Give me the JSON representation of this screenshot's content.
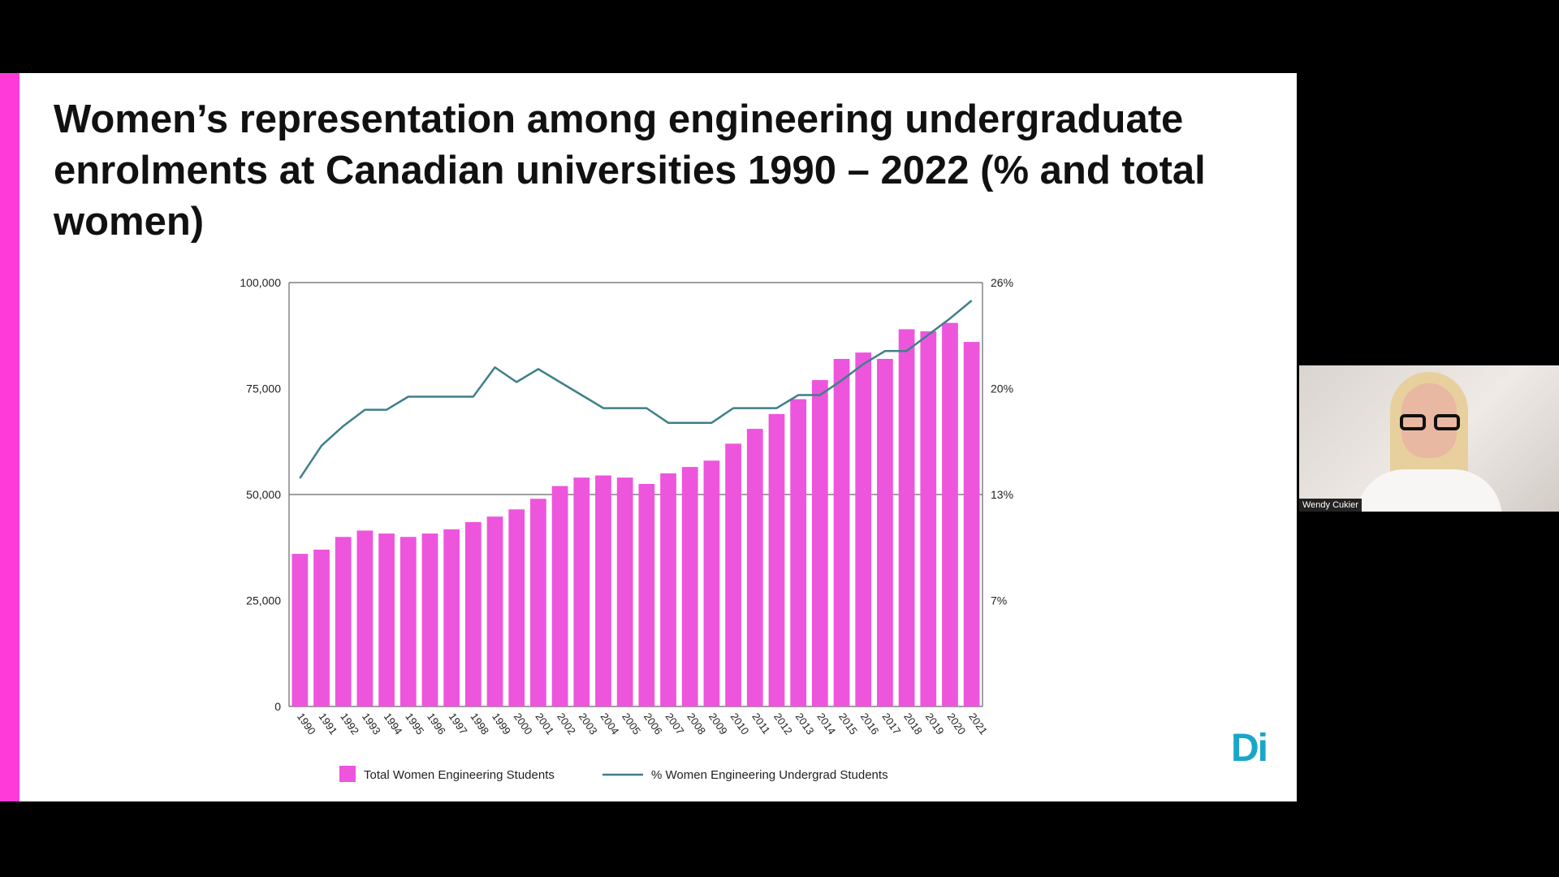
{
  "slide": {
    "title": "Women’s representation among engineering undergraduate enrolments at Canadian universities 1990 – 2022 (% and total women)",
    "logo_text": "Di",
    "accent_color": "#ff3ad8"
  },
  "video_tile": {
    "participant_name": "Wendy Cukier"
  },
  "chart_data": {
    "type": "bar",
    "title": "",
    "categories": [
      "1990",
      "1991",
      "1992",
      "1993",
      "1994",
      "1995",
      "1996",
      "1997",
      "1998",
      "1999",
      "2000",
      "2001",
      "2002",
      "2003",
      "2004",
      "2005",
      "2006",
      "2007",
      "2008",
      "2009",
      "2010",
      "2011",
      "2012",
      "2013",
      "2014",
      "2015",
      "2016",
      "2017",
      "2018",
      "2019",
      "2020",
      "2021"
    ],
    "series": [
      {
        "name": "Total Women Engineering Students",
        "type": "bar",
        "axis": "left",
        "color": "#ee55dd",
        "values": [
          36000,
          37000,
          40000,
          41500,
          40800,
          40000,
          40800,
          41800,
          43500,
          44800,
          46500,
          49000,
          52000,
          54000,
          54500,
          54000,
          52500,
          55000,
          56500,
          58000,
          62000,
          65500,
          69000,
          72500,
          77000,
          82000,
          83500,
          82000,
          89000,
          88500,
          90500,
          86000
        ]
      },
      {
        "name": "% Women Engineering Undergrad Students",
        "type": "line",
        "axis": "right",
        "color": "#3e7f8a",
        "values": [
          14.0,
          16.0,
          17.2,
          18.2,
          18.2,
          19.0,
          19.0,
          19.0,
          19.0,
          20.8,
          19.9,
          20.7,
          19.9,
          19.1,
          18.3,
          18.3,
          18.3,
          17.4,
          17.4,
          17.4,
          18.3,
          18.3,
          18.3,
          19.1,
          19.1,
          20.0,
          21.0,
          21.8,
          21.8,
          22.8,
          23.8,
          24.9
        ]
      }
    ],
    "y_left": {
      "min": 0,
      "max": 100000,
      "ticks": [
        "0",
        "25,000",
        "50,000",
        "75,000",
        "100,000"
      ],
      "tick_values": [
        0,
        25000,
        50000,
        75000,
        100000
      ]
    },
    "y_right": {
      "min": 0,
      "max": 26,
      "ticks": [
        "7%",
        "13%",
        "20%",
        "26%"
      ],
      "tick_values": [
        6.5,
        13,
        19.5,
        26
      ]
    },
    "grid": "horizontal at 50,000 and 100,000",
    "legend_position": "bottom-center"
  }
}
